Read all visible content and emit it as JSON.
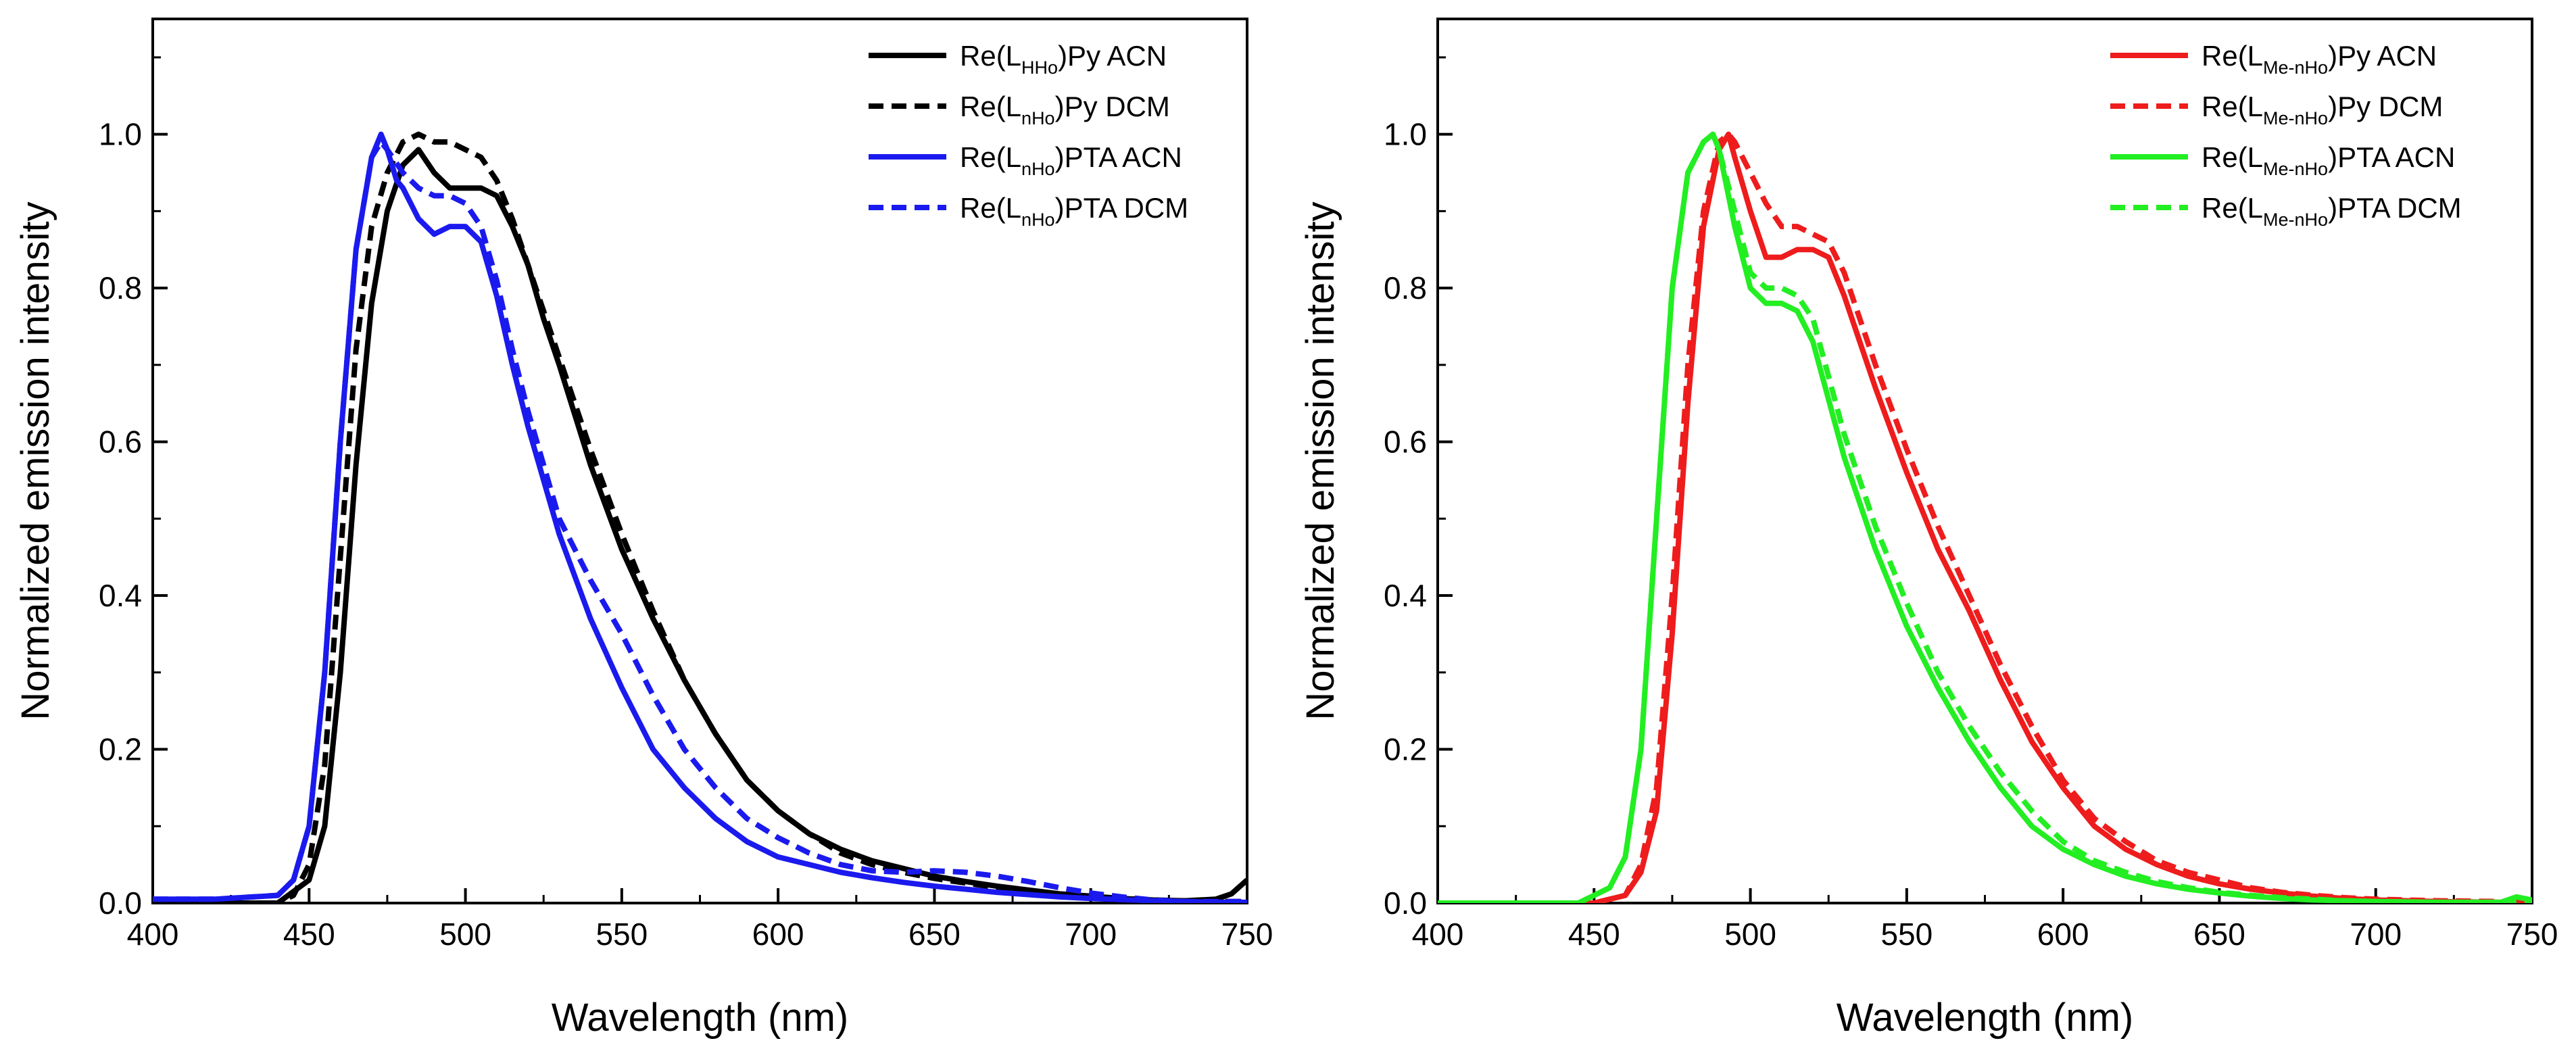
{
  "chart_data": [
    {
      "type": "line",
      "panel": "left",
      "title": "",
      "xlabel": "Wavelength (nm)",
      "ylabel": "Normalized emission intensity",
      "xlim": [
        400,
        750
      ],
      "ylim": [
        0,
        1.15
      ],
      "xticks": [
        400,
        450,
        500,
        550,
        600,
        650,
        700,
        750
      ],
      "yticks": [
        0.0,
        0.2,
        0.4,
        0.6,
        0.8,
        1.0
      ],
      "xtick_labels": [
        "400",
        "450",
        "500",
        "550",
        "600",
        "650",
        "700",
        "750"
      ],
      "ytick_labels": [
        "0.0",
        "0.2",
        "0.4",
        "0.6",
        "0.8",
        "1.0"
      ],
      "grid": false,
      "legend_position": "top-right",
      "series": [
        {
          "legend_main": "Re(L",
          "legend_sub": "HHo",
          "legend_tail": ")Py ACN",
          "color": "#000000",
          "dash": false,
          "x": [
            400,
            440,
            450,
            455,
            460,
            465,
            470,
            475,
            480,
            485,
            490,
            495,
            500,
            505,
            510,
            515,
            520,
            525,
            530,
            540,
            550,
            560,
            570,
            580,
            590,
            600,
            610,
            620,
            630,
            640,
            650,
            660,
            670,
            680,
            690,
            700,
            710,
            720,
            730,
            740,
            745,
            750
          ],
          "y": [
            0.0,
            0.0,
            0.03,
            0.1,
            0.3,
            0.57,
            0.78,
            0.9,
            0.96,
            0.98,
            0.95,
            0.93,
            0.93,
            0.93,
            0.92,
            0.88,
            0.83,
            0.76,
            0.7,
            0.57,
            0.46,
            0.37,
            0.29,
            0.22,
            0.16,
            0.12,
            0.09,
            0.07,
            0.055,
            0.045,
            0.035,
            0.028,
            0.022,
            0.017,
            0.012,
            0.009,
            0.006,
            0.004,
            0.003,
            0.005,
            0.012,
            0.03
          ]
        },
        {
          "legend_main": "Re(L",
          "legend_sub": "nHo",
          "legend_tail": ")Py DCM",
          "color": "#000000",
          "dash": true,
          "x": [
            400,
            440,
            445,
            450,
            455,
            460,
            465,
            470,
            475,
            480,
            485,
            490,
            495,
            500,
            505,
            510,
            515,
            520,
            525,
            530,
            540,
            550,
            560,
            570,
            580,
            590,
            600,
            610,
            620,
            630,
            640,
            650,
            660,
            670,
            680,
            690,
            700,
            710,
            720,
            730,
            740,
            750
          ],
          "y": [
            0.0,
            0.0,
            0.01,
            0.05,
            0.18,
            0.45,
            0.72,
            0.88,
            0.95,
            0.99,
            1.0,
            0.99,
            0.99,
            0.98,
            0.97,
            0.94,
            0.89,
            0.83,
            0.77,
            0.71,
            0.59,
            0.48,
            0.38,
            0.29,
            0.22,
            0.16,
            0.12,
            0.09,
            0.065,
            0.05,
            0.04,
            0.032,
            0.026,
            0.02,
            0.015,
            0.011,
            0.008,
            0.006,
            0.004,
            0.003,
            0.002,
            0.002
          ]
        },
        {
          "legend_main": "Re(L",
          "legend_sub": "nHo",
          "legend_tail": ")PTA ACN",
          "color": "#1a1aee",
          "dash": false,
          "x": [
            400,
            420,
            440,
            445,
            450,
            455,
            460,
            465,
            470,
            473,
            475,
            478,
            480,
            485,
            490,
            495,
            500,
            505,
            510,
            515,
            520,
            530,
            540,
            550,
            560,
            570,
            580,
            590,
            600,
            610,
            620,
            630,
            640,
            650,
            660,
            670,
            680,
            690,
            700,
            720,
            740,
            750
          ],
          "y": [
            0.005,
            0.005,
            0.01,
            0.03,
            0.1,
            0.3,
            0.6,
            0.85,
            0.97,
            1.0,
            0.98,
            0.94,
            0.93,
            0.89,
            0.87,
            0.88,
            0.88,
            0.86,
            0.79,
            0.7,
            0.62,
            0.48,
            0.37,
            0.28,
            0.2,
            0.15,
            0.11,
            0.08,
            0.06,
            0.05,
            0.04,
            0.033,
            0.027,
            0.022,
            0.018,
            0.014,
            0.011,
            0.008,
            0.006,
            0.003,
            0.001,
            0.001
          ]
        },
        {
          "legend_main": "Re(L",
          "legend_sub": "nHo",
          "legend_tail": ")PTA DCM",
          "color": "#1a1aee",
          "dash": true,
          "x": [
            400,
            420,
            440,
            445,
            450,
            455,
            460,
            465,
            470,
            473,
            475,
            480,
            485,
            490,
            495,
            500,
            505,
            510,
            515,
            520,
            530,
            540,
            550,
            560,
            570,
            580,
            590,
            600,
            610,
            620,
            630,
            640,
            650,
            660,
            670,
            680,
            690,
            700,
            710,
            720,
            730,
            740,
            750
          ],
          "y": [
            0.005,
            0.005,
            0.01,
            0.03,
            0.1,
            0.3,
            0.6,
            0.85,
            0.97,
            0.99,
            0.98,
            0.95,
            0.93,
            0.92,
            0.92,
            0.91,
            0.88,
            0.81,
            0.72,
            0.64,
            0.5,
            0.42,
            0.35,
            0.27,
            0.2,
            0.15,
            0.11,
            0.085,
            0.065,
            0.05,
            0.042,
            0.04,
            0.042,
            0.04,
            0.035,
            0.028,
            0.02,
            0.013,
            0.008,
            0.004,
            0.002,
            0.002,
            0.002
          ]
        }
      ]
    },
    {
      "type": "line",
      "panel": "right",
      "title": "",
      "xlabel": "Wavelength (nm)",
      "ylabel": "Normalized emission intensity",
      "xlim": [
        400,
        750
      ],
      "ylim": [
        0,
        1.15
      ],
      "xticks": [
        400,
        450,
        500,
        550,
        600,
        650,
        700,
        750
      ],
      "yticks": [
        0.0,
        0.2,
        0.4,
        0.6,
        0.8,
        1.0
      ],
      "xtick_labels": [
        "400",
        "450",
        "500",
        "550",
        "600",
        "650",
        "700",
        "750"
      ],
      "ytick_labels": [
        "0.0",
        "0.2",
        "0.4",
        "0.6",
        "0.8",
        "1.0"
      ],
      "grid": false,
      "legend_position": "top-right",
      "series": [
        {
          "legend_main": "Re(L",
          "legend_sub": "Me-nHo",
          "legend_tail": ")Py ACN",
          "color": "#ee1c1c",
          "dash": false,
          "x": [
            400,
            450,
            460,
            465,
            470,
            475,
            480,
            485,
            490,
            493,
            495,
            500,
            505,
            510,
            515,
            520,
            525,
            530,
            540,
            550,
            560,
            570,
            580,
            590,
            600,
            610,
            620,
            630,
            640,
            650,
            660,
            670,
            680,
            690,
            700,
            720,
            740,
            750
          ],
          "y": [
            0.0,
            0.0,
            0.01,
            0.04,
            0.12,
            0.35,
            0.65,
            0.88,
            0.98,
            1.0,
            0.97,
            0.9,
            0.84,
            0.84,
            0.85,
            0.85,
            0.84,
            0.79,
            0.67,
            0.56,
            0.46,
            0.38,
            0.29,
            0.21,
            0.15,
            0.1,
            0.07,
            0.05,
            0.035,
            0.025,
            0.018,
            0.013,
            0.009,
            0.006,
            0.004,
            0.002,
            0.001,
            0.001
          ]
        },
        {
          "legend_main": "Re(L",
          "legend_sub": "Me-nHo",
          "legend_tail": ")Py DCM",
          "color": "#ee1c1c",
          "dash": true,
          "x": [
            400,
            450,
            460,
            465,
            470,
            475,
            480,
            485,
            490,
            493,
            495,
            500,
            505,
            510,
            515,
            520,
            525,
            530,
            540,
            550,
            560,
            570,
            580,
            590,
            600,
            610,
            620,
            630,
            640,
            650,
            660,
            670,
            680,
            690,
            700,
            720,
            740,
            750
          ],
          "y": [
            0.0,
            0.0,
            0.01,
            0.05,
            0.15,
            0.4,
            0.7,
            0.9,
            0.99,
            1.0,
            0.99,
            0.95,
            0.91,
            0.88,
            0.88,
            0.87,
            0.86,
            0.82,
            0.7,
            0.59,
            0.49,
            0.4,
            0.31,
            0.23,
            0.16,
            0.11,
            0.08,
            0.055,
            0.04,
            0.03,
            0.02,
            0.014,
            0.01,
            0.007,
            0.005,
            0.003,
            0.002,
            0.002
          ]
        },
        {
          "legend_main": "Re(L",
          "legend_sub": "Me-nHo",
          "legend_tail": ")PTA ACN",
          "color": "#22ee22",
          "dash": false,
          "x": [
            400,
            445,
            455,
            460,
            465,
            470,
            475,
            480,
            485,
            488,
            490,
            495,
            500,
            505,
            510,
            515,
            520,
            530,
            540,
            550,
            560,
            570,
            580,
            590,
            600,
            610,
            620,
            630,
            640,
            650,
            660,
            670,
            680,
            690,
            700,
            720,
            740,
            745,
            750
          ],
          "y": [
            0.0,
            0.0,
            0.02,
            0.06,
            0.2,
            0.5,
            0.8,
            0.95,
            0.99,
            1.0,
            0.98,
            0.88,
            0.8,
            0.78,
            0.78,
            0.77,
            0.73,
            0.58,
            0.46,
            0.36,
            0.28,
            0.21,
            0.15,
            0.1,
            0.07,
            0.05,
            0.035,
            0.025,
            0.018,
            0.013,
            0.009,
            0.006,
            0.004,
            0.003,
            0.002,
            0.001,
            0.001,
            0.008,
            0.004
          ]
        },
        {
          "legend_main": "Re(L",
          "legend_sub": "Me-nHo",
          "legend_tail": ")PTA DCM",
          "color": "#22ee22",
          "dash": true,
          "x": [
            400,
            445,
            455,
            460,
            465,
            470,
            475,
            480,
            485,
            488,
            490,
            495,
            500,
            505,
            510,
            515,
            520,
            530,
            540,
            550,
            560,
            570,
            580,
            590,
            600,
            610,
            620,
            630,
            640,
            650,
            660,
            670,
            680,
            690,
            700,
            720,
            740,
            750
          ],
          "y": [
            0.0,
            0.0,
            0.02,
            0.06,
            0.2,
            0.5,
            0.8,
            0.95,
            0.99,
            1.0,
            0.98,
            0.9,
            0.82,
            0.8,
            0.8,
            0.79,
            0.76,
            0.61,
            0.49,
            0.39,
            0.3,
            0.23,
            0.17,
            0.12,
            0.08,
            0.055,
            0.04,
            0.028,
            0.02,
            0.014,
            0.01,
            0.007,
            0.005,
            0.003,
            0.002,
            0.001,
            0.001,
            0.001
          ]
        }
      ]
    }
  ]
}
